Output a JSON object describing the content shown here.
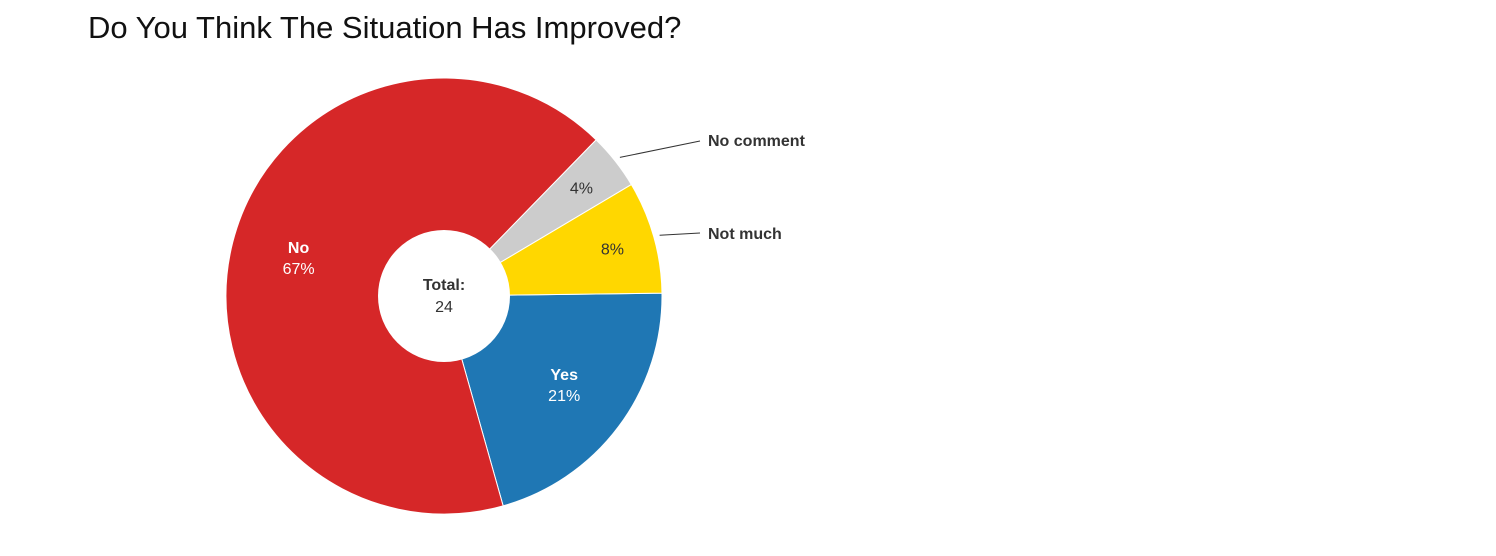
{
  "chart_data": {
    "type": "pie",
    "variant": "donut",
    "title": "Do You Think The Situation Has Improved?",
    "slices": [
      {
        "label": "Yes",
        "value": 5,
        "percent_label": "21%",
        "color": "#1f77b4",
        "label_position": "inside"
      },
      {
        "label": "No",
        "value": 16,
        "percent_label": "67%",
        "color": "#d62728",
        "label_position": "inside"
      },
      {
        "label": "No comment",
        "value": 1,
        "percent_label": "4%",
        "color": "#cccccc",
        "label_position": "outside"
      },
      {
        "label": "Not much",
        "value": 2,
        "percent_label": "8%",
        "color": "#ffd700",
        "label_position": "outside"
      }
    ],
    "center": {
      "label": "Total:",
      "value": "24"
    }
  }
}
